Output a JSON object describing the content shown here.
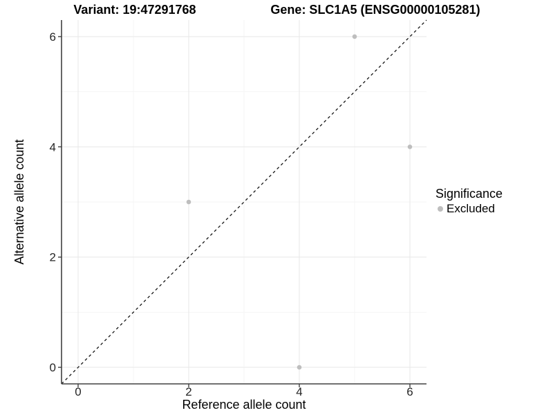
{
  "chart_data": {
    "type": "scatter",
    "title_left": "Variant: 19:47291768",
    "title_right": "Gene: SLC1A5 (ENSG00000105281)",
    "xlabel": "Reference allele count",
    "ylabel": "Alternative allele count",
    "xlim": [
      -0.3,
      6.3
    ],
    "ylim": [
      -0.3,
      6.3
    ],
    "xticks": [
      0,
      2,
      4,
      6
    ],
    "yticks": [
      0,
      2,
      4,
      6
    ],
    "minor_xticks": [
      1,
      3,
      5
    ],
    "minor_yticks": [
      1,
      3,
      5
    ],
    "series": [
      {
        "name": "Excluded",
        "color": "#bebebe",
        "points": [
          [
            5,
            6
          ],
          [
            6,
            4
          ],
          [
            2,
            3
          ],
          [
            4,
            0
          ]
        ]
      }
    ],
    "identity_line": {
      "style": "dashed",
      "color": "#141414",
      "from": [
        -0.3,
        -0.3
      ],
      "to": [
        6.3,
        6.3
      ]
    },
    "legend": {
      "title": "Significance",
      "position": "right",
      "items": [
        {
          "label": "Excluded",
          "color": "#bebebe"
        }
      ]
    },
    "grid": {
      "major_color": "#e9e9e9",
      "minor_color": "#f4f4f4",
      "background": "#ffffff"
    },
    "axis_color": "#404040",
    "tick_length": 5,
    "point_radius": 3.3
  }
}
